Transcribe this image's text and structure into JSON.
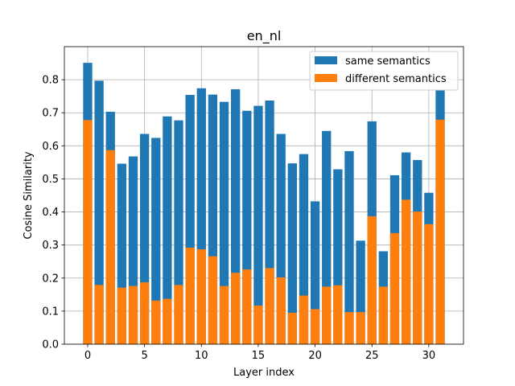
{
  "chart_data": {
    "type": "bar",
    "title": "en_nl",
    "xlabel": "Layer index",
    "ylabel": "Cosine Similarity",
    "xlim": [
      -2.05,
      33.05
    ],
    "ylim": [
      0.0,
      0.9
    ],
    "xticks": [
      0,
      5,
      10,
      15,
      20,
      25,
      30
    ],
    "yticks": [
      0.0,
      0.1,
      0.2,
      0.3,
      0.4,
      0.5,
      0.6,
      0.7,
      0.8
    ],
    "grid": true,
    "legend_position": "top-right",
    "x": [
      0,
      1,
      2,
      3,
      4,
      5,
      6,
      7,
      8,
      9,
      10,
      11,
      12,
      13,
      14,
      15,
      16,
      17,
      18,
      19,
      20,
      21,
      22,
      23,
      24,
      25,
      26,
      27,
      28,
      29,
      30,
      31
    ],
    "series": [
      {
        "name": "same semantics",
        "color": "#1f77b4",
        "values": [
          0.851,
          0.797,
          0.703,
          0.546,
          0.568,
          0.636,
          0.624,
          0.689,
          0.677,
          0.754,
          0.774,
          0.755,
          0.733,
          0.771,
          0.706,
          0.721,
          0.737,
          0.636,
          0.547,
          0.575,
          0.432,
          0.645,
          0.529,
          0.584,
          0.313,
          0.674,
          0.281,
          0.511,
          0.58,
          0.557,
          0.458,
          0.77
        ]
      },
      {
        "name": "different semantics",
        "color": "#ff7f0e",
        "values": [
          0.678,
          0.179,
          0.587,
          0.171,
          0.176,
          0.187,
          0.132,
          0.137,
          0.179,
          0.292,
          0.287,
          0.266,
          0.176,
          0.216,
          0.226,
          0.117,
          0.23,
          0.202,
          0.095,
          0.147,
          0.106,
          0.174,
          0.178,
          0.097,
          0.097,
          0.387,
          0.174,
          0.336,
          0.437,
          0.401,
          0.363,
          0.679
        ]
      }
    ]
  }
}
